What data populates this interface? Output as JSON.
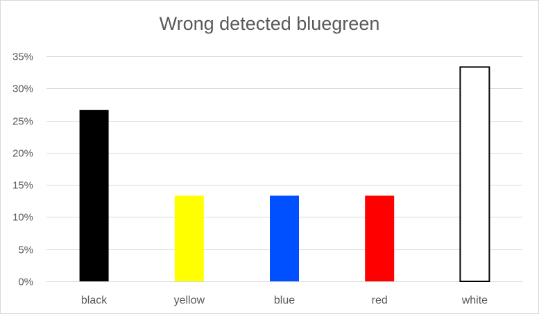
{
  "chart_data": {
    "type": "bar",
    "title": "Wrong detected bluegreen",
    "xlabel": "",
    "ylabel": "",
    "categories": [
      "black",
      "yellow",
      "blue",
      "red",
      "white"
    ],
    "values": [
      0.2667,
      0.1333,
      0.1333,
      0.1333,
      0.3333
    ],
    "bar_colors": [
      "#000000",
      "#ffff00",
      "#0050ff",
      "#ff0000",
      "#ffffff"
    ],
    "bar_outline_color": "#000000",
    "ylim": [
      0,
      0.35
    ],
    "y_ticks": [
      0,
      0.05,
      0.1,
      0.15,
      0.2,
      0.25,
      0.3,
      0.35
    ],
    "y_tick_labels": [
      "0%",
      "5%",
      "10%",
      "15%",
      "20%",
      "25%",
      "30%",
      "35%"
    ],
    "grid": true,
    "legend": false
  }
}
